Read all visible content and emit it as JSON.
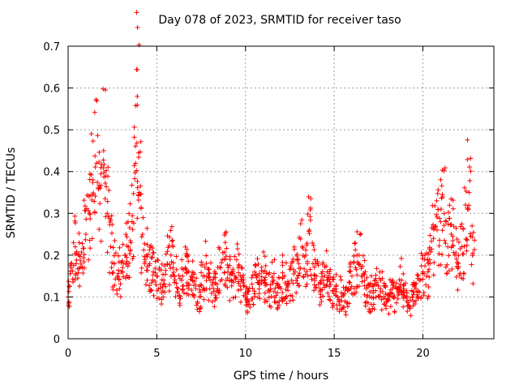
{
  "chart_data": {
    "type": "scatter",
    "title": "Day 078 of 2023, SRMTID for receiver taso",
    "xlabel": "GPS time / hours",
    "ylabel": "SRMTID / TECUs",
    "xlim": [
      0,
      24
    ],
    "ylim": [
      0,
      0.7
    ],
    "xticks": [
      "0",
      "5",
      "10",
      "15",
      "20"
    ],
    "yticks": [
      "0",
      "0.1",
      "0.2",
      "0.3",
      "0.4",
      "0.5",
      "0.6",
      "0.7"
    ],
    "grid": true,
    "marker": "+",
    "series": [
      {
        "name": "SRMTID",
        "color": "#ff0000",
        "x": [
          0.0,
          0.2,
          0.4,
          0.6,
          0.8,
          1.0,
          1.2,
          1.4,
          1.6,
          1.8,
          2.0,
          2.2,
          2.4,
          2.6,
          2.8,
          3.0,
          3.2,
          3.4,
          3.6,
          3.8,
          3.9,
          4.0,
          4.2,
          4.4,
          4.6,
          4.8,
          5.0,
          5.2,
          5.4,
          5.6,
          5.8,
          6.0,
          6.2,
          6.4,
          6.6,
          6.8,
          7.0,
          7.2,
          7.4,
          7.6,
          7.8,
          8.0,
          8.2,
          8.4,
          8.6,
          8.8,
          9.0,
          9.2,
          9.4,
          9.6,
          9.8,
          10.0,
          10.2,
          10.4,
          10.6,
          10.8,
          11.0,
          11.2,
          11.4,
          11.6,
          11.8,
          12.0,
          12.2,
          12.4,
          12.6,
          12.8,
          13.0,
          13.2,
          13.4,
          13.6,
          13.8,
          14.0,
          14.2,
          14.4,
          14.6,
          14.8,
          15.0,
          15.2,
          15.4,
          15.6,
          15.8,
          16.0,
          16.2,
          16.4,
          16.6,
          16.8,
          17.0,
          17.2,
          17.4,
          17.6,
          17.8,
          18.0,
          18.2,
          18.4,
          18.6,
          18.8,
          19.0,
          19.2,
          19.4,
          19.6,
          19.8,
          20.0,
          20.2,
          20.4,
          20.6,
          20.8,
          21.0,
          21.2,
          21.4,
          21.6,
          21.8,
          22.0,
          22.2,
          22.4,
          22.6,
          22.8
        ],
        "y": [
          0.1,
          0.18,
          0.22,
          0.2,
          0.17,
          0.25,
          0.3,
          0.38,
          0.42,
          0.36,
          0.45,
          0.3,
          0.22,
          0.18,
          0.15,
          0.16,
          0.2,
          0.22,
          0.28,
          0.42,
          0.58,
          0.35,
          0.25,
          0.2,
          0.18,
          0.16,
          0.15,
          0.13,
          0.14,
          0.18,
          0.2,
          0.15,
          0.12,
          0.14,
          0.17,
          0.16,
          0.14,
          0.12,
          0.1,
          0.15,
          0.18,
          0.14,
          0.12,
          0.13,
          0.17,
          0.19,
          0.16,
          0.14,
          0.15,
          0.17,
          0.14,
          0.1,
          0.09,
          0.12,
          0.15,
          0.14,
          0.16,
          0.13,
          0.12,
          0.14,
          0.11,
          0.12,
          0.15,
          0.13,
          0.14,
          0.16,
          0.18,
          0.22,
          0.2,
          0.26,
          0.18,
          0.15,
          0.12,
          0.14,
          0.16,
          0.13,
          0.12,
          0.1,
          0.11,
          0.09,
          0.12,
          0.15,
          0.17,
          0.2,
          0.15,
          0.12,
          0.1,
          0.11,
          0.13,
          0.12,
          0.1,
          0.09,
          0.11,
          0.1,
          0.12,
          0.14,
          0.1,
          0.08,
          0.1,
          0.12,
          0.14,
          0.16,
          0.15,
          0.18,
          0.24,
          0.26,
          0.28,
          0.3,
          0.22,
          0.25,
          0.2,
          0.18,
          0.22,
          0.32,
          0.35,
          0.2
        ]
      }
    ]
  }
}
